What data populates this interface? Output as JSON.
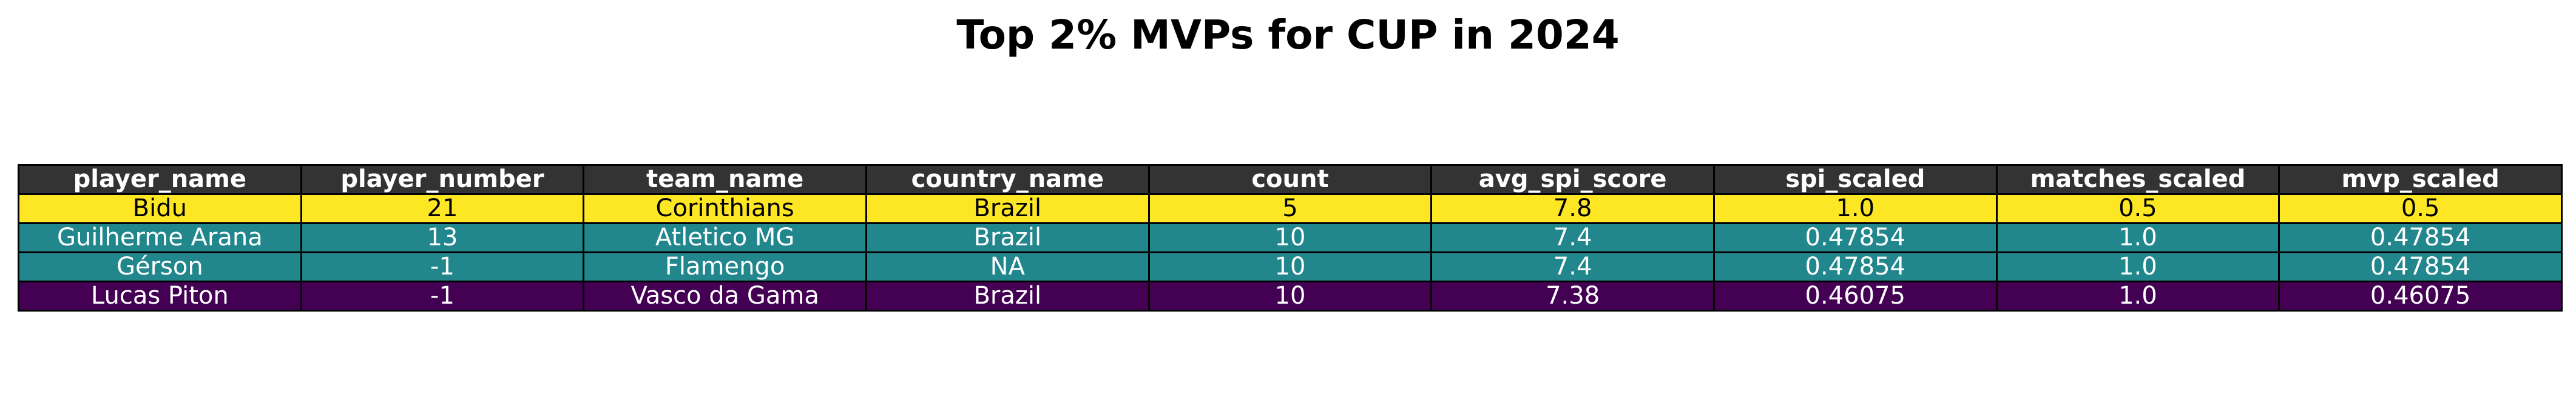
{
  "chart_data": {
    "type": "table",
    "title": "Top 2% MVPs for CUP in 2024",
    "columns": [
      "player_name",
      "player_number",
      "team_name",
      "country_name",
      "count",
      "avg_spi_score",
      "spi_scaled",
      "matches_scaled",
      "mvp_scaled"
    ],
    "rows": [
      {
        "cells": [
          "Bidu",
          "21",
          "Corinthians",
          "Brazil",
          "5",
          "7.8",
          "1.0",
          "0.5",
          "0.5"
        ],
        "fill": "#fde725",
        "text_color": "#000000"
      },
      {
        "cells": [
          "Guilherme Arana",
          "13",
          "Atletico MG",
          "Brazil",
          "10",
          "7.4",
          "0.47854",
          "1.0",
          "0.47854"
        ],
        "fill": "#21878d",
        "text_color": "#ffffff"
      },
      {
        "cells": [
          "Gérson",
          "-1",
          "Flamengo",
          "NA",
          "10",
          "7.4",
          "0.47854",
          "1.0",
          "0.47854"
        ],
        "fill": "#21878d",
        "text_color": "#ffffff"
      },
      {
        "cells": [
          "Lucas Piton",
          "-1",
          "Vasco da Gama",
          "Brazil",
          "10",
          "7.38",
          "0.46075",
          "1.0",
          "0.46075"
        ],
        "fill": "#440154",
        "text_color": "#ffffff"
      }
    ],
    "header_fill": "#333333",
    "header_text_color": "#ffffff"
  }
}
